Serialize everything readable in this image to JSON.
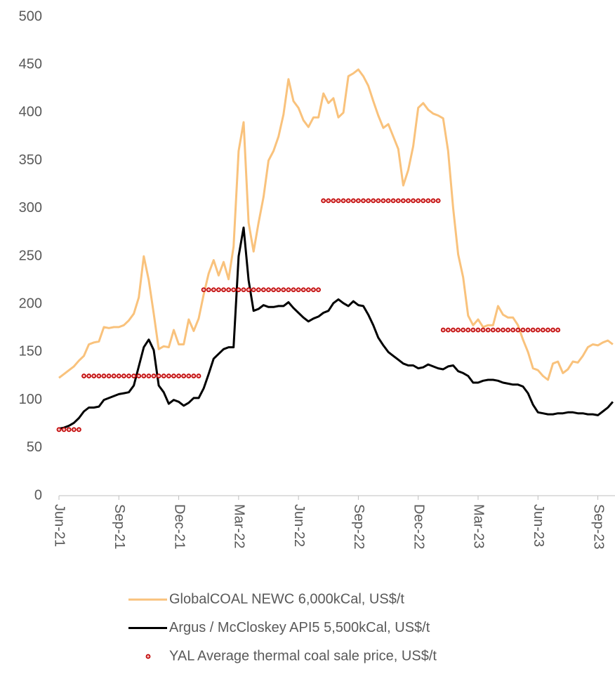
{
  "chart_data": {
    "type": "line",
    "x": [
      0,
      0.25,
      0.5,
      0.75,
      1,
      1.25,
      1.5,
      1.75,
      2,
      2.25,
      2.5,
      2.75,
      3,
      3.25,
      3.5,
      3.75,
      4,
      4.25,
      4.5,
      4.75,
      5,
      5.25,
      5.5,
      5.75,
      6,
      6.25,
      6.5,
      6.75,
      7,
      7.25,
      7.5,
      7.75,
      8,
      8.25,
      8.5,
      8.75,
      9,
      9.25,
      9.5,
      9.75,
      10,
      10.25,
      10.5,
      10.75,
      11,
      11.25,
      11.5,
      11.75,
      12,
      12.25,
      12.5,
      12.75,
      13,
      13.25,
      13.5,
      13.75,
      14,
      14.25,
      14.5,
      14.75,
      15,
      15.25,
      15.5,
      15.75,
      16,
      16.25,
      16.5,
      16.75,
      17,
      17.25,
      17.5,
      17.75,
      18,
      18.25,
      18.5,
      18.75,
      19,
      19.25,
      19.5,
      19.75,
      20,
      20.25,
      20.5,
      20.75,
      21,
      21.25,
      21.5,
      21.75,
      22,
      22.25,
      22.5,
      22.75,
      23,
      23.25,
      23.5,
      23.75,
      24,
      24.25,
      24.5,
      24.75,
      25,
      25.25,
      25.5,
      25.75,
      26,
      26.25,
      26.5,
      26.75,
      27,
      27.25,
      27.5,
      27.75
    ],
    "series": [
      {
        "name": "GlobalCOAL NEWC 6,000kCal, US$/t",
        "type": "line",
        "color": "#f9c27c",
        "values": [
          123,
          127,
          131,
          135,
          141,
          146,
          158,
          160,
          161,
          176,
          175,
          176,
          176,
          178,
          183,
          190,
          207,
          250,
          225,
          190,
          153,
          156,
          155,
          173,
          158,
          158,
          184,
          172,
          185,
          210,
          232,
          246,
          230,
          244,
          226,
          260,
          360,
          390,
          285,
          255,
          285,
          312,
          350,
          360,
          375,
          398,
          435,
          412,
          405,
          392,
          385,
          395,
          395,
          420,
          410,
          415,
          395,
          400,
          438,
          441,
          445,
          438,
          428,
          412,
          397,
          384,
          388,
          375,
          362,
          324,
          340,
          365,
          405,
          410,
          403,
          399,
          397,
          394,
          360,
          300,
          252,
          228,
          188,
          178,
          184,
          176,
          178,
          178,
          198,
          189,
          186,
          186,
          178,
          163,
          150,
          133,
          131,
          125,
          121,
          138,
          140,
          128,
          132,
          140,
          139,
          146,
          155,
          158,
          157,
          160,
          162,
          158
        ]
      },
      {
        "name": "Argus / McCloskey API5 5,500kCal, US$/t",
        "type": "line",
        "color": "#000000",
        "values": [
          70,
          71,
          73,
          76,
          81,
          88,
          92,
          92,
          93,
          100,
          102,
          104,
          106,
          107,
          108,
          115,
          135,
          155,
          163,
          152,
          115,
          108,
          96,
          100,
          98,
          94,
          97,
          102,
          102,
          112,
          127,
          143,
          148,
          153,
          155,
          155,
          250,
          280,
          225,
          193,
          195,
          199,
          197,
          197,
          198,
          198,
          202,
          196,
          191,
          186,
          182,
          185,
          187,
          191,
          193,
          201,
          205,
          201,
          198,
          203,
          199,
          198,
          189,
          178,
          165,
          157,
          150,
          146,
          142,
          138,
          136,
          136,
          133,
          134,
          137,
          135,
          133,
          132,
          135,
          136,
          130,
          128,
          125,
          118,
          118,
          120,
          121,
          121,
          120,
          118,
          117,
          116,
          116,
          114,
          107,
          95,
          87,
          86,
          85,
          85,
          86,
          86,
          87,
          87,
          86,
          86,
          85,
          85,
          84,
          88,
          92,
          98
        ]
      },
      {
        "name": "YAL Average thermal coal sale price, US$/t",
        "type": "scatter",
        "color": "#c00000",
        "values": [
          69,
          69,
          69,
          69,
          69,
          125,
          125,
          125,
          125,
          125,
          125,
          125,
          125,
          125,
          125,
          125,
          125,
          125,
          125,
          125,
          125,
          125,
          125,
          125,
          125,
          125,
          125,
          125,
          125,
          215,
          215,
          215,
          215,
          215,
          215,
          215,
          215,
          215,
          215,
          215,
          215,
          215,
          215,
          215,
          215,
          215,
          215,
          215,
          215,
          215,
          215,
          215,
          215,
          308,
          308,
          308,
          308,
          308,
          308,
          308,
          308,
          308,
          308,
          308,
          308,
          308,
          308,
          308,
          308,
          308,
          308,
          308,
          308,
          308,
          308,
          308,
          308,
          173,
          173,
          173,
          173,
          173,
          173,
          173,
          173,
          173,
          173,
          173,
          173,
          173,
          173,
          173,
          173,
          173,
          173,
          173,
          173,
          173,
          173,
          173,
          173,
          null,
          null,
          null,
          null,
          null,
          null,
          null,
          null,
          null,
          null,
          null
        ]
      }
    ],
    "xlim": [
      0,
      27.86
    ],
    "xticks": [
      {
        "value": 0,
        "label": "Jun-21"
      },
      {
        "value": 3,
        "label": "Sep-21"
      },
      {
        "value": 6,
        "label": "Dec-21"
      },
      {
        "value": 9,
        "label": "Mar-22"
      },
      {
        "value": 12,
        "label": "Jun-22"
      },
      {
        "value": 15,
        "label": "Sep-22"
      },
      {
        "value": 18,
        "label": "Dec-22"
      },
      {
        "value": 21,
        "label": "Mar-23"
      },
      {
        "value": 24,
        "label": "Jun-23"
      },
      {
        "value": 27,
        "label": "Sep-23"
      }
    ],
    "ylim": [
      0,
      500
    ],
    "yticks": [
      0,
      50,
      100,
      150,
      200,
      250,
      300,
      350,
      400,
      450,
      500
    ],
    "grid": false,
    "legend": "bottom"
  }
}
